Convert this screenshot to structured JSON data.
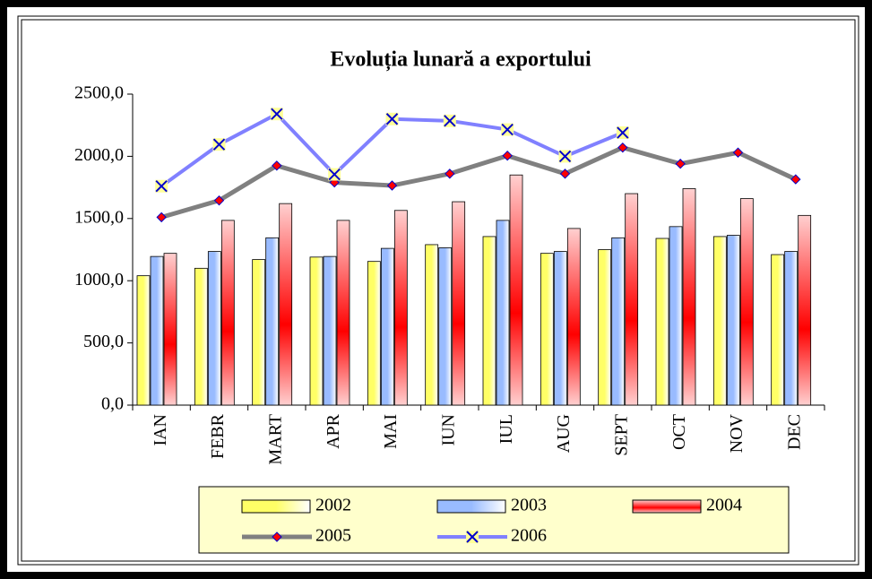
{
  "chart_data": {
    "type": "bar_line",
    "title": "Evoluția lunară a exportului",
    "categories": [
      "IAN",
      "FEBR",
      "MART",
      "APR",
      "MAI",
      "IUN",
      "IUL",
      "AUG",
      "SEPT",
      "OCT",
      "NOV",
      "DEC"
    ],
    "series": [
      {
        "name": "2002",
        "kind": "bar",
        "color": "#ffff66",
        "values": [
          1040,
          1100,
          1170,
          1190,
          1155,
          1290,
          1355,
          1220,
          1250,
          1340,
          1355,
          1210
        ]
      },
      {
        "name": "2003",
        "kind": "bar",
        "color": "#99bbff",
        "values": [
          1195,
          1235,
          1345,
          1195,
          1260,
          1265,
          1485,
          1235,
          1345,
          1435,
          1365,
          1235
        ]
      },
      {
        "name": "2004",
        "kind": "bar",
        "color": "#ff0000",
        "values": [
          1220,
          1485,
          1620,
          1485,
          1565,
          1635,
          1850,
          1420,
          1700,
          1740,
          1660,
          1525
        ]
      },
      {
        "name": "2005",
        "kind": "line",
        "color": "#808080",
        "marker": "diamond",
        "values": [
          1510,
          1645,
          1925,
          1790,
          1765,
          1860,
          2005,
          1860,
          2070,
          1940,
          2030,
          1815
        ]
      },
      {
        "name": "2006",
        "kind": "line",
        "color": "#8080ff",
        "marker": "x",
        "values": [
          1760,
          2095,
          2340,
          1855,
          2300,
          2285,
          2215,
          2000,
          2190,
          null,
          null,
          null
        ]
      }
    ],
    "ylim": [
      0,
      2500
    ],
    "yticks": [
      {
        "value": 0,
        "label": "0,0"
      },
      {
        "value": 500,
        "label": "500,0"
      },
      {
        "value": 1000,
        "label": "1000,0"
      },
      {
        "value": 1500,
        "label": "1500,0"
      },
      {
        "value": 2000,
        "label": "2000,0"
      },
      {
        "value": 2500,
        "label": "2500,0"
      }
    ],
    "grid": false,
    "legend": "bottom"
  }
}
